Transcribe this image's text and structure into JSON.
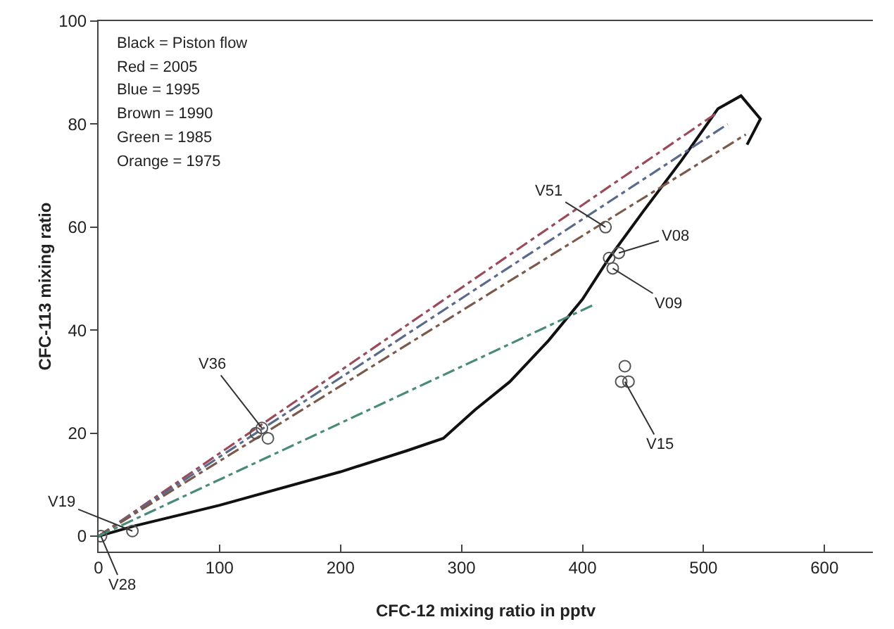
{
  "chart_data": {
    "type": "scatter",
    "xlabel": "CFC-12 mixing ratio in pptv",
    "ylabel": "CFC-113 mixing ratio",
    "xlim": [
      0,
      640
    ],
    "xticks": [
      0,
      100,
      200,
      300,
      400,
      500,
      600
    ],
    "ylim": [
      -3,
      100
    ],
    "yticks": [
      0,
      20,
      40,
      60,
      80,
      100
    ],
    "grid": false,
    "marker": "circle",
    "series": [
      {
        "type": "line",
        "marker": "none",
        "line_style": "solid",
        "color": "#111111",
        "x": [
          0,
          30,
          100,
          200,
          255,
          285,
          311,
          340,
          372,
          400,
          422,
          450,
          482,
          512,
          531,
          547,
          536
        ],
        "values": [
          0,
          2,
          6,
          12.5,
          16.6,
          19,
          24.5,
          30,
          38,
          46,
          54,
          63,
          73,
          83,
          85.5,
          81,
          76
        ]
      },
      {
        "type": "line",
        "marker": "none",
        "line_style": "dashed",
        "color": "#9a4a5a",
        "x": [
          0,
          510
        ],
        "values": [
          0,
          82
        ]
      },
      {
        "type": "line",
        "marker": "none",
        "line_style": "dashed",
        "color": "#5a6a8a",
        "x": [
          0,
          520
        ],
        "values": [
          0,
          80
        ]
      },
      {
        "type": "line",
        "marker": "none",
        "line_style": "dashed",
        "color": "#7a5a4a",
        "x": [
          0,
          535
        ],
        "values": [
          0,
          78
        ]
      },
      {
        "type": "line",
        "marker": "none",
        "line_style": "dashed",
        "color": "#4a8a7a",
        "x": [
          0,
          410
        ],
        "values": [
          0,
          45
        ]
      },
      {
        "color": "#555555",
        "x": [
          2,
          28,
          130,
          135,
          140,
          419,
          422,
          425,
          430,
          432,
          435,
          438
        ],
        "values": [
          0,
          1,
          20,
          21,
          19,
          60,
          54,
          52,
          55,
          30,
          33,
          30
        ]
      }
    ],
    "annotations": [
      "Black = Piston flow",
      "Red = 2005",
      "Blue = 1995",
      "Brown = 1990",
      "Green = 1985",
      "Orange = 1975",
      {
        "text": "V36",
        "x": 135,
        "y": 21
      },
      {
        "text": "V51",
        "x": 419,
        "y": 60
      },
      {
        "text": "V08",
        "x": 430,
        "y": 55
      },
      {
        "text": "V09",
        "x": 425,
        "y": 52
      },
      {
        "text": "V15",
        "x": 435,
        "y": 30
      },
      {
        "text": "V19",
        "x": 28,
        "y": 1
      },
      {
        "text": "V28",
        "x": 2,
        "y": 0
      }
    ]
  }
}
